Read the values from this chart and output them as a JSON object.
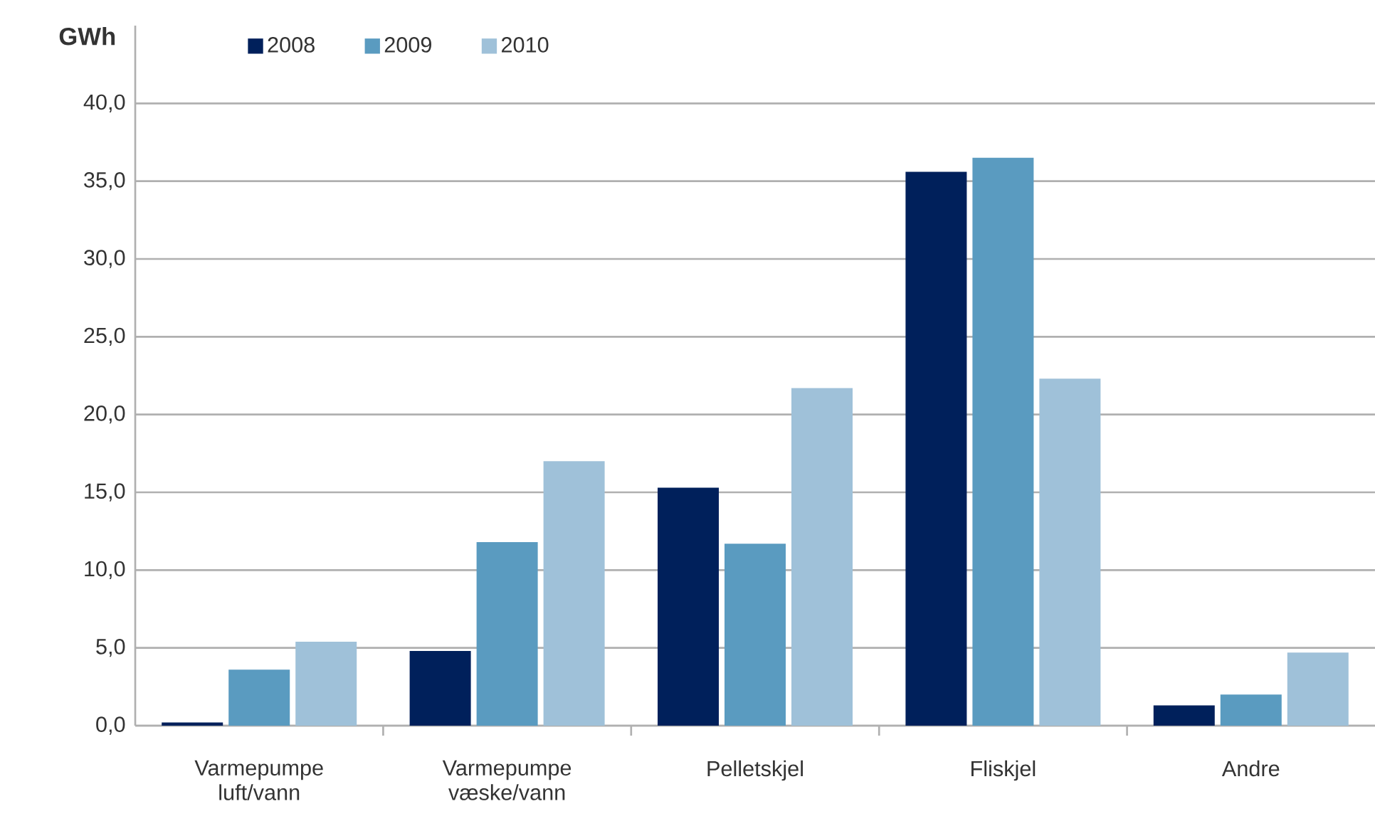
{
  "chart_data": {
    "type": "bar",
    "ylabel": "GWh",
    "categories": [
      "Varmepumpe luft/vann",
      "Varmepumpe væske/vann",
      "Pelletskjel",
      "Fliskjel",
      "Andre"
    ],
    "series": [
      {
        "name": "2008",
        "color": "#00205b",
        "values": [
          0.2,
          4.8,
          15.3,
          35.6,
          1.3
        ]
      },
      {
        "name": "2009",
        "color": "#5a9bc0",
        "values": [
          3.6,
          11.8,
          11.7,
          36.5,
          2.0
        ]
      },
      {
        "name": "2010",
        "color": "#9fc1d9",
        "values": [
          5.4,
          17.0,
          21.7,
          22.3,
          4.7
        ]
      }
    ],
    "ylim": [
      0,
      45
    ],
    "yticks": [
      {
        "value": 0,
        "label": "0,0"
      },
      {
        "value": 5,
        "label": "5,0"
      },
      {
        "value": 10,
        "label": "10,0"
      },
      {
        "value": 15,
        "label": "15,0"
      },
      {
        "value": 20,
        "label": "20,0"
      },
      {
        "value": 25,
        "label": "25,0"
      },
      {
        "value": 30,
        "label": "30,0"
      },
      {
        "value": 35,
        "label": "35,0"
      },
      {
        "value": 40,
        "label": "40,0"
      }
    ],
    "grid": "y",
    "legend": "top left"
  }
}
